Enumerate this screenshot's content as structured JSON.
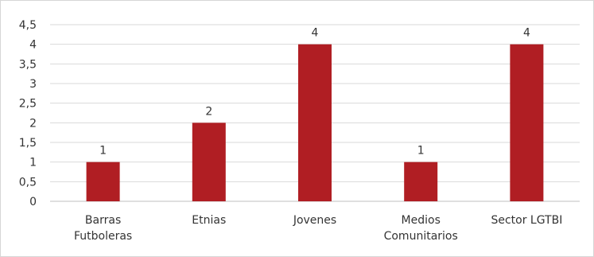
{
  "chart_data": {
    "type": "bar",
    "categories": [
      [
        "Barras",
        "Futboleras"
      ],
      [
        "Etnias"
      ],
      [
        "Jovenes"
      ],
      [
        "Medios",
        "Comunitarios"
      ],
      [
        "Sector LGTBI"
      ]
    ],
    "values": [
      1,
      2,
      4,
      1,
      4
    ],
    "data_labels": [
      "1",
      "2",
      "4",
      "1",
      "4"
    ],
    "ylim": [
      0,
      4.5
    ],
    "yticks": [
      "0",
      "0,5",
      "1",
      "1,5",
      "2",
      "2,5",
      "3",
      "3,5",
      "4",
      "4,5"
    ],
    "grid": true,
    "bar_color": "#b01e23"
  }
}
